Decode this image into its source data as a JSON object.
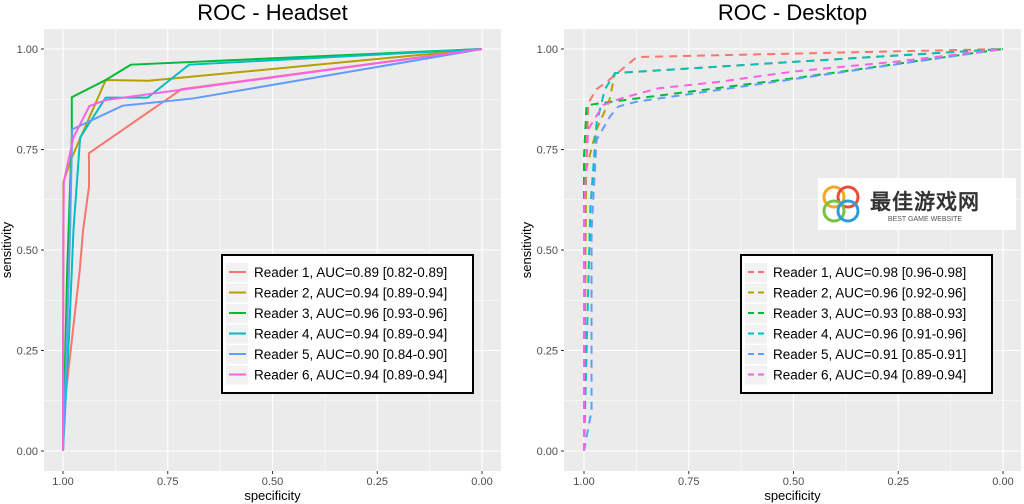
{
  "chart_data": [
    {
      "type": "line",
      "title": "ROC - Headset",
      "xlabel": "specificity",
      "ylabel": "sensitivity",
      "xlim": [
        1,
        0
      ],
      "ylim": [
        0,
        1
      ],
      "xticks": [
        "1.00",
        "0.75",
        "0.50",
        "0.25",
        "0.00"
      ],
      "yticks": [
        "0.00",
        "0.25",
        "0.50",
        "0.75",
        "1.00"
      ],
      "line_style": "solid",
      "legend_position": "bottom-right",
      "grid": true,
      "series": [
        {
          "name": "Reader 1, AUC=0.89 [0.82-0.89]",
          "color": "#F8766D",
          "points": [
            [
              1,
              0
            ],
            [
              0.998,
              0.1
            ],
            [
              0.96,
              0.45
            ],
            [
              0.952,
              0.55
            ],
            [
              0.938,
              0.657
            ],
            [
              0.938,
              0.741
            ],
            [
              0.717,
              0.9
            ],
            [
              0,
              1
            ]
          ]
        },
        {
          "name": "Reader 2, AUC=0.94 [0.89-0.94]",
          "color": "#B79F00",
          "points": [
            [
              1,
              0
            ],
            [
              0.999,
              0.67
            ],
            [
              0.979,
              0.73
            ],
            [
              0.898,
              0.923
            ],
            [
              0.796,
              0.921
            ],
            [
              0,
              1
            ]
          ]
        },
        {
          "name": "Reader 3, AUC=0.96 [0.93-0.96]",
          "color": "#00BA38",
          "points": [
            [
              1,
              0
            ],
            [
              0.99,
              0.45
            ],
            [
              0.979,
              0.78
            ],
            [
              0.979,
              0.88
            ],
            [
              0.898,
              0.923
            ],
            [
              0.838,
              0.961
            ],
            [
              0,
              1
            ]
          ]
        },
        {
          "name": "Reader 4, AUC=0.94 [0.89-0.94]",
          "color": "#00BFC4",
          "points": [
            [
              1,
              0
            ],
            [
              0.985,
              0.3
            ],
            [
              0.975,
              0.55
            ],
            [
              0.959,
              0.78
            ],
            [
              0.898,
              0.879
            ],
            [
              0.798,
              0.879
            ],
            [
              0.699,
              0.961
            ],
            [
              0,
              1
            ]
          ]
        },
        {
          "name": "Reader 5, AUC=0.90 [0.84-0.90]",
          "color": "#619CFF",
          "points": [
            [
              1,
              0
            ],
            [
              0.99,
              0.3
            ],
            [
              0.983,
              0.55
            ],
            [
              0.978,
              0.8
            ],
            [
              0.858,
              0.859
            ],
            [
              0.689,
              0.877
            ],
            [
              0,
              1
            ]
          ]
        },
        {
          "name": "Reader 6, AUC=0.94 [0.89-0.94]",
          "color": "#F564E3",
          "points": [
            [
              1,
              0
            ],
            [
              1,
              0.25
            ],
            [
              0.999,
              0.55
            ],
            [
              0.998,
              0.67
            ],
            [
              0.975,
              0.78
            ],
            [
              0.937,
              0.858
            ],
            [
              0.898,
              0.873
            ],
            [
              0,
              1
            ]
          ]
        }
      ]
    },
    {
      "type": "line",
      "title": "ROC - Desktop",
      "xlabel": "specificity",
      "ylabel": "sensitivity",
      "xlim": [
        1,
        0
      ],
      "ylim": [
        0,
        1
      ],
      "xticks": [
        "1.00",
        "0.75",
        "0.50",
        "0.25",
        "0.00"
      ],
      "yticks": [
        "0.00",
        "0.25",
        "0.50",
        "0.75",
        "1.00"
      ],
      "line_style": "dashed",
      "legend_position": "bottom-right",
      "grid": true,
      "series": [
        {
          "name": "Reader 1, AUC=0.98 [0.96-0.98]",
          "color": "#F8766D",
          "points": [
            [
              1,
              0
            ],
            [
              0.995,
              0.7
            ],
            [
              0.99,
              0.865
            ],
            [
              0.97,
              0.9
            ],
            [
              0.946,
              0.918
            ],
            [
              0.874,
              0.98
            ],
            [
              0,
              1
            ]
          ]
        },
        {
          "name": "Reader 2, AUC=0.96 [0.92-0.96]",
          "color": "#B79F00",
          "points": [
            [
              1,
              0
            ],
            [
              0.995,
              0.7
            ],
            [
              0.97,
              0.8
            ],
            [
              0.94,
              0.87
            ],
            [
              0.926,
              0.94
            ],
            [
              0.5,
              0.968
            ],
            [
              0,
              1
            ]
          ]
        },
        {
          "name": "Reader 3, AUC=0.93 [0.88-0.93]",
          "color": "#00BA38",
          "points": [
            [
              1,
              0
            ],
            [
              1,
              0.73
            ],
            [
              0.994,
              0.86
            ],
            [
              0.954,
              0.866
            ],
            [
              0.874,
              0.877
            ],
            [
              0.5,
              0.927
            ],
            [
              0,
              1
            ]
          ]
        },
        {
          "name": "Reader 4, AUC=0.96 [0.91-0.96]",
          "color": "#00BFC4",
          "points": [
            [
              1,
              0
            ],
            [
              0.985,
              0.6
            ],
            [
              0.97,
              0.815
            ],
            [
              0.95,
              0.9
            ],
            [
              0.926,
              0.94
            ],
            [
              0.5,
              0.968
            ],
            [
              0,
              1
            ]
          ]
        },
        {
          "name": "Reader 5, AUC=0.91 [0.85-0.91]",
          "color": "#619CFF",
          "points": [
            [
              1,
              0
            ],
            [
              0.982,
              0.1
            ],
            [
              0.982,
              0.55
            ],
            [
              0.97,
              0.774
            ],
            [
              0.938,
              0.832
            ],
            [
              0.918,
              0.857
            ],
            [
              0.874,
              0.869
            ],
            [
              0.5,
              0.925
            ],
            [
              0,
              1
            ]
          ]
        },
        {
          "name": "Reader 6, AUC=0.94 [0.89-0.94]",
          "color": "#F564E3",
          "points": [
            [
              1,
              0
            ],
            [
              1,
              0.6
            ],
            [
              0.99,
              0.8
            ],
            [
              0.954,
              0.861
            ],
            [
              0.912,
              0.877
            ],
            [
              0.824,
              0.902
            ],
            [
              0.681,
              0.918
            ],
            [
              0.5,
              0.944
            ],
            [
              0.26,
              0.968
            ],
            [
              0,
              1
            ]
          ]
        }
      ]
    }
  ],
  "watermark": {
    "name": "最佳游戏网",
    "tagline": "BEST GAME WEBSITE"
  }
}
